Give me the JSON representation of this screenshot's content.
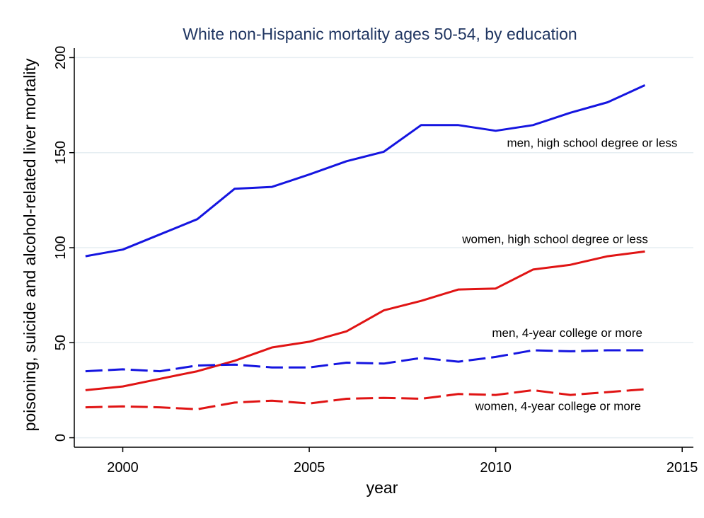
{
  "chart_data": {
    "type": "line",
    "title": "White non-Hispanic mortality ages 50-54, by education",
    "xlabel": "year",
    "ylabel": "poisoning, suicide and alcohol-related liver mortality",
    "xlim": [
      1998.7,
      2015.3
    ],
    "ylim": [
      -5,
      205
    ],
    "x_ticks": [
      2000,
      2005,
      2010,
      2015
    ],
    "y_ticks": [
      0,
      50,
      100,
      150,
      200
    ],
    "grid": "horizontal",
    "legend": "none",
    "x": [
      1999,
      2000,
      2001,
      2002,
      2003,
      2004,
      2005,
      2006,
      2007,
      2008,
      2009,
      2010,
      2011,
      2012,
      2013,
      2014
    ],
    "series": [
      {
        "name": "men, high school degree or less",
        "color": "#1515e0",
        "dash": "solid",
        "values": [
          95.5,
          99,
          107,
          115,
          131,
          132,
          138.5,
          145.5,
          150.5,
          164.5,
          164.5,
          161.5,
          164.5,
          171,
          176.5,
          185.5
        ],
        "label_at": [
          2010.3,
          153
        ]
      },
      {
        "name": "women, high school degree or less",
        "color": "#e01414",
        "dash": "solid",
        "values": [
          25,
          27,
          31,
          35,
          40.5,
          47.5,
          50.5,
          56,
          67,
          72,
          78,
          78.5,
          88.5,
          91,
          95.5,
          98
        ],
        "label_at": [
          2009.1,
          102.5
        ]
      },
      {
        "name": "men, 4-year college or more",
        "color": "#1515e0",
        "dash": "dashed",
        "values": [
          35,
          36,
          35,
          38,
          38.5,
          37,
          37,
          39.5,
          39,
          42,
          40,
          42.5,
          46,
          45.5,
          46,
          46
        ],
        "label_at": [
          2009.9,
          53
        ]
      },
      {
        "name": "women, 4-year college or more",
        "color": "#e01414",
        "dash": "dashed",
        "values": [
          16,
          16.5,
          16,
          15,
          18.5,
          19.5,
          18,
          20.5,
          21,
          20.5,
          23,
          22.5,
          25,
          22.5,
          24,
          25.5
        ],
        "label_at": [
          2009.45,
          14.5
        ]
      }
    ]
  }
}
